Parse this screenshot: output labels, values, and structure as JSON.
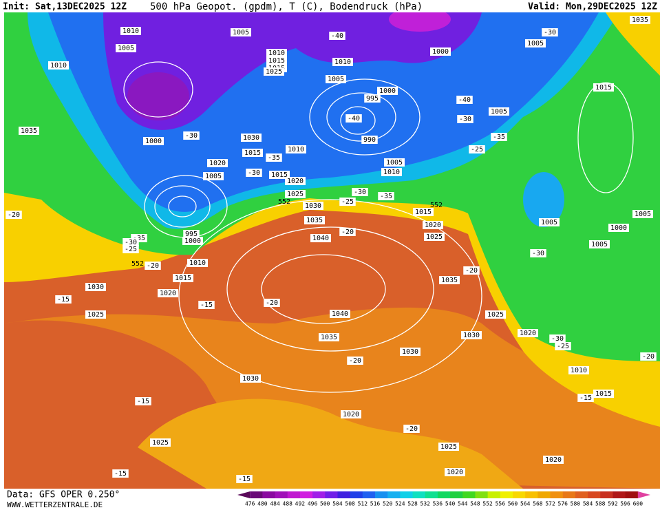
{
  "header": {
    "init": "Init: Sat,13DEC2025 12Z",
    "title": "500 hPa Geopot. (gpdm), T (C), Bodendruck (hPa)",
    "valid": "Valid: Mon,29DEC2025 12Z"
  },
  "footer": {
    "data": "Data: GFS OPER 0.250°",
    "site": "WWW.WETTERZENTRALE.DE"
  },
  "colorbar": {
    "labels": [
      476,
      480,
      484,
      488,
      492,
      496,
      500,
      504,
      508,
      512,
      516,
      520,
      524,
      528,
      532,
      536,
      540,
      544,
      548,
      552,
      556,
      560,
      564,
      568,
      572,
      576,
      580,
      584,
      588,
      592,
      596,
      600
    ],
    "colors": [
      "#5a0a5a",
      "#6a0a78",
      "#8a0aa0",
      "#a010b8",
      "#c018d0",
      "#d020e0",
      "#a020e8",
      "#7020e8",
      "#4020e0",
      "#2040e8",
      "#2060f0",
      "#1890f0",
      "#18b0f0",
      "#10d0e8",
      "#10e0c0",
      "#10e090",
      "#10d860",
      "#20d040",
      "#40d820",
      "#80e010",
      "#c8f000",
      "#f0f000",
      "#f8d800",
      "#f8c000",
      "#f0a800",
      "#f09010",
      "#e87818",
      "#e06020",
      "#d84820",
      "#c83020",
      "#b01818",
      "#a01010",
      "#e040a0"
    ]
  },
  "isobar_labels": [
    "1010",
    "1005",
    "1005",
    "1010",
    "1010",
    "1015",
    "1015",
    "1025",
    "1010",
    "1005",
    "1000",
    "1000",
    "995",
    "990",
    "1005",
    "1035",
    "1015",
    "1005",
    "1035",
    "1000",
    "1030",
    "1015",
    "1010",
    "1020",
    "1005",
    "1015",
    "1005",
    "1010",
    "1020",
    "1025",
    "1030",
    "1035",
    "1040",
    "1015",
    "1020",
    "1025",
    "1005",
    "1000",
    "1005",
    "1005",
    "1000",
    "995",
    "1010",
    "1015",
    "1020",
    "1030",
    "1025",
    "1035",
    "1040",
    "1035",
    "1025",
    "1030",
    "1020",
    "1030",
    "1030",
    "1010",
    "1015",
    "1020",
    "1025",
    "1025",
    "1020",
    "1020"
  ],
  "temperature_labels": [
    "-40",
    "-30",
    "-40",
    "-40",
    "-30",
    "-30",
    "-35",
    "-25",
    "-35",
    "-30",
    "-30",
    "-25",
    "-35",
    "-20",
    "-35",
    "-30",
    "-25",
    "-20",
    "-20",
    "-20",
    "-30",
    "-15",
    "-20",
    "-15",
    "-20",
    "-30",
    "-25",
    "-20",
    "-15",
    "-15",
    "-20",
    "-15",
    "-15"
  ],
  "geopotential_labels": [
    "552",
    "552",
    "552"
  ]
}
